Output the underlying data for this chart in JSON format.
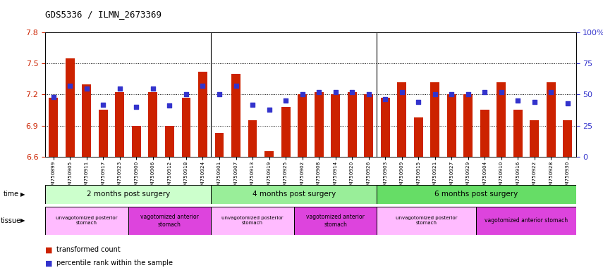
{
  "title": "GDS5336 / ILMN_2673369",
  "samples": [
    "GSM750899",
    "GSM750905",
    "GSM750911",
    "GSM750917",
    "GSM750923",
    "GSM750900",
    "GSM750906",
    "GSM750912",
    "GSM750918",
    "GSM750924",
    "GSM750901",
    "GSM750907",
    "GSM750913",
    "GSM750919",
    "GSM750925",
    "GSM750902",
    "GSM750908",
    "GSM750914",
    "GSM750920",
    "GSM750926",
    "GSM750903",
    "GSM750909",
    "GSM750915",
    "GSM750921",
    "GSM750927",
    "GSM750929",
    "GSM750904",
    "GSM750910",
    "GSM750916",
    "GSM750922",
    "GSM750928",
    "GSM750930"
  ],
  "bar_values": [
    7.17,
    7.55,
    7.3,
    7.05,
    7.22,
    6.9,
    7.22,
    6.9,
    7.17,
    7.42,
    6.83,
    7.4,
    6.95,
    6.65,
    7.08,
    7.2,
    7.22,
    7.2,
    7.22,
    7.2,
    7.17,
    7.32,
    6.98,
    7.32,
    7.2,
    7.2,
    7.05,
    7.32,
    7.05,
    6.95,
    7.32,
    6.95
  ],
  "percentile_values": [
    48,
    57,
    55,
    42,
    55,
    40,
    55,
    41,
    50,
    57,
    50,
    57,
    42,
    38,
    45,
    50,
    52,
    52,
    52,
    50,
    46,
    52,
    44,
    50,
    50,
    50,
    52,
    52,
    45,
    44,
    52,
    43
  ],
  "ylim_left": [
    6.6,
    7.8
  ],
  "ylim_right": [
    0,
    100
  ],
  "yticks_left": [
    6.6,
    6.9,
    7.2,
    7.5,
    7.8
  ],
  "yticks_right": [
    0,
    25,
    50,
    75,
    100
  ],
  "bar_color": "#cc2200",
  "dot_color": "#3333cc",
  "bar_baseline": 6.6,
  "time_groups": [
    {
      "label": "2 months post surgery",
      "start": 0,
      "end": 10,
      "color": "#ccffcc"
    },
    {
      "label": "4 months post surgery",
      "start": 10,
      "end": 20,
      "color": "#99ee99"
    },
    {
      "label": "6 months post surgery",
      "start": 20,
      "end": 32,
      "color": "#66dd66"
    }
  ],
  "tissue_groups": [
    {
      "label": "unvagotomized posterior\nstomach",
      "start": 0,
      "end": 5,
      "color": "#ffbbff"
    },
    {
      "label": "vagotomized anterior\nstomach",
      "start": 5,
      "end": 10,
      "color": "#dd44dd"
    },
    {
      "label": "unvagotomized posterior\nstomach",
      "start": 10,
      "end": 15,
      "color": "#ffbbff"
    },
    {
      "label": "vagotomized anterior\nstomach",
      "start": 15,
      "end": 20,
      "color": "#dd44dd"
    },
    {
      "label": "unvagotomized posterior\nstomach",
      "start": 20,
      "end": 26,
      "color": "#ffbbff"
    },
    {
      "label": "vagotomized anterior stomach",
      "start": 26,
      "end": 32,
      "color": "#dd44dd"
    }
  ]
}
